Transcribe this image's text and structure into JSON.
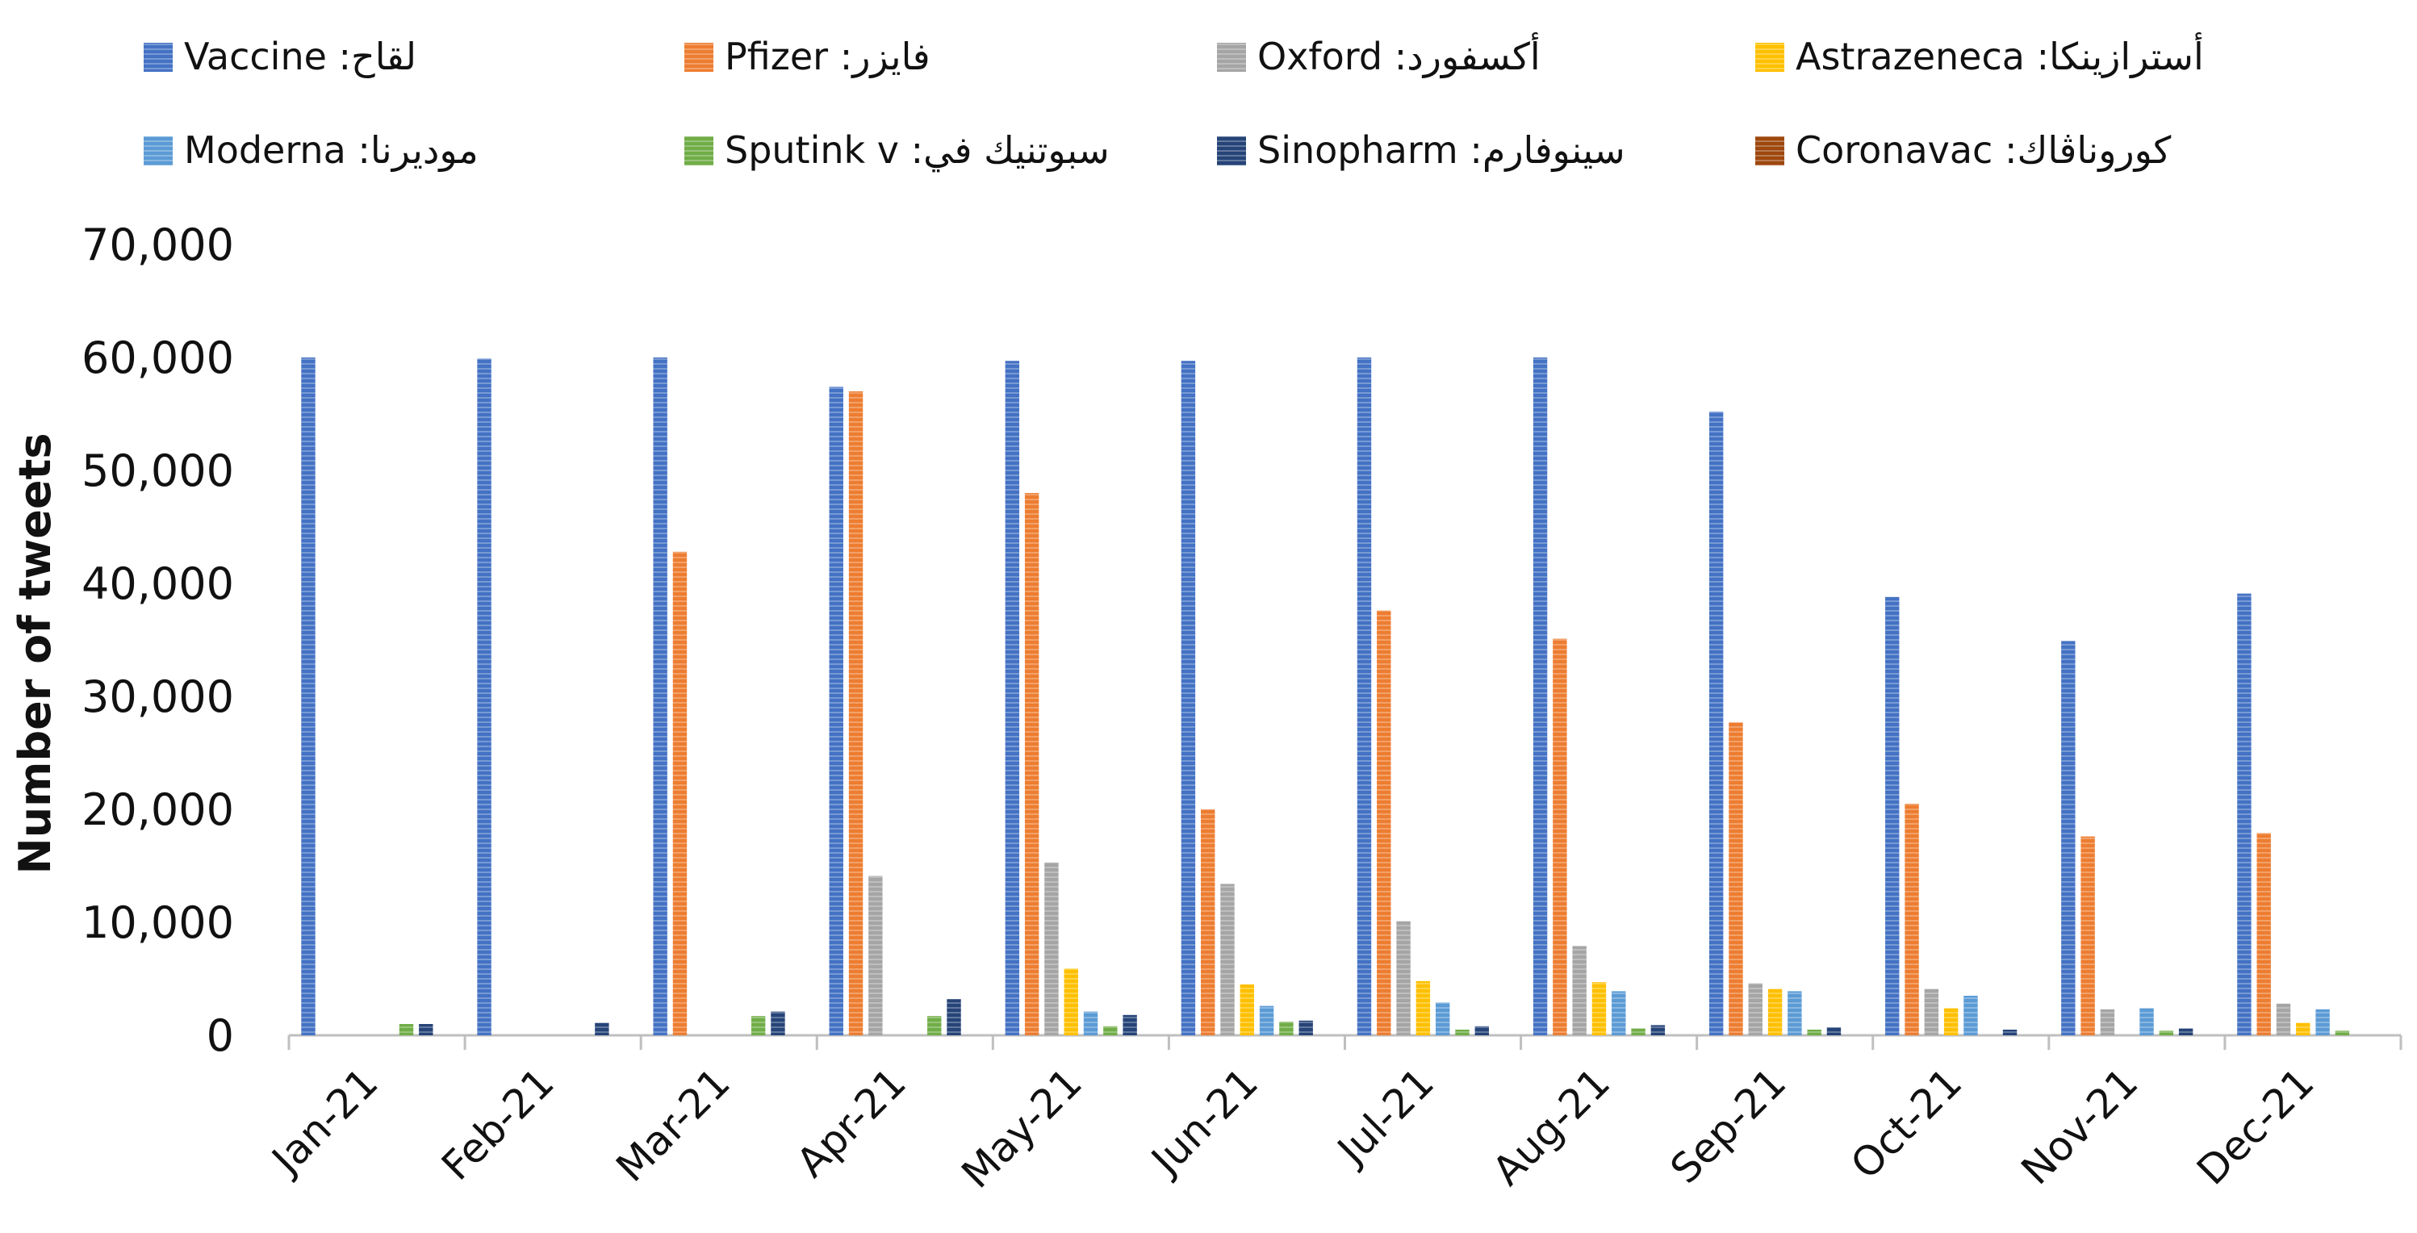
{
  "chart_data": {
    "type": "bar",
    "ylabel": "Number of tweets",
    "xlabel": "",
    "ylim": [
      0,
      70000
    ],
    "yticks": [
      0,
      10000,
      20000,
      30000,
      40000,
      50000,
      60000,
      70000
    ],
    "ytick_labels": [
      "0",
      "10,000",
      "20,000",
      "30,000",
      "40,000",
      "50,000",
      "60,000",
      "70,000"
    ],
    "grid": false,
    "legend_position": "top",
    "categories": [
      "Jan-21",
      "Feb-21",
      "Mar-21",
      "Apr-21",
      "May-21",
      "Jun-21",
      "Jul-21",
      "Aug-21",
      "Sep-21",
      "Oct-21",
      "Nov-21",
      "Dec-21"
    ],
    "series": [
      {
        "name": "Vaccine :لقاح",
        "color": "#4472C4",
        "values": [
          60000,
          59900,
          60000,
          57400,
          59700,
          59700,
          60000,
          60000,
          55200,
          38800,
          34900,
          39100
        ]
      },
      {
        "name": "Pfizer :فايزر",
        "color": "#ED7D31",
        "values": [
          0,
          0,
          42800,
          57000,
          48000,
          20000,
          37600,
          35100,
          27700,
          20500,
          17600,
          17900
        ]
      },
      {
        "name": "Oxford :أكسفورد",
        "color": "#A5A5A5",
        "values": [
          0,
          0,
          0,
          14100,
          15300,
          13400,
          10100,
          7900,
          4600,
          4100,
          2300,
          2800
        ]
      },
      {
        "name": "Astrazeneca :أسترازينكا",
        "color": "#FFC000",
        "values": [
          0,
          0,
          0,
          0,
          5900,
          4500,
          4800,
          4700,
          4100,
          2400,
          0,
          1100
        ]
      },
      {
        "name": "Moderna :موديرنا",
        "color": "#5B9BD5",
        "values": [
          0,
          0,
          0,
          0,
          2100,
          2600,
          2900,
          3900,
          3900,
          3500,
          2400,
          2300
        ]
      },
      {
        "name": "Sputink v :سبوتنيك في",
        "color": "#70AD47",
        "values": [
          1000,
          0,
          1700,
          1700,
          800,
          1200,
          500,
          600,
          500,
          0,
          400,
          400
        ]
      },
      {
        "name": "Sinopharm :سينوفارم",
        "color": "#264478",
        "values": [
          1000,
          1100,
          2100,
          3200,
          1800,
          1300,
          800,
          900,
          700,
          500,
          600,
          0
        ]
      },
      {
        "name": "Coronavac :كوروناڤاك",
        "color": "#9E480E",
        "values": [
          0,
          0,
          0,
          0,
          0,
          0,
          0,
          0,
          0,
          0,
          0,
          0
        ]
      }
    ]
  }
}
